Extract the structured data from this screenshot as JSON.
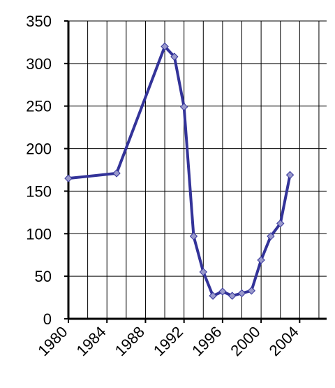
{
  "chart_data": {
    "type": "line",
    "x": [
      1980,
      1985,
      1990,
      1991,
      1992,
      1993,
      1994,
      1995,
      1996,
      1997,
      1998,
      1999,
      2000,
      2001,
      2002,
      2003
    ],
    "series": [
      {
        "color": "#333399",
        "marker_color": "#9999cc",
        "values": [
          165,
          171,
          320,
          308,
          249,
          97,
          55,
          27,
          32,
          27,
          30,
          33,
          69,
          97,
          112,
          169
        ]
      }
    ],
    "xlim": [
      1980,
      2006.8
    ],
    "xticks": [
      1980,
      1984,
      1988,
      1992,
      1996,
      2000,
      2004
    ],
    "xgrid": [
      1982,
      1986,
      1990,
      1994,
      1998,
      2002,
      2006
    ],
    "ylim": [
      0,
      350
    ],
    "yticks": [
      0,
      50,
      100,
      150,
      200,
      250,
      300,
      350
    ],
    "grid": true
  }
}
